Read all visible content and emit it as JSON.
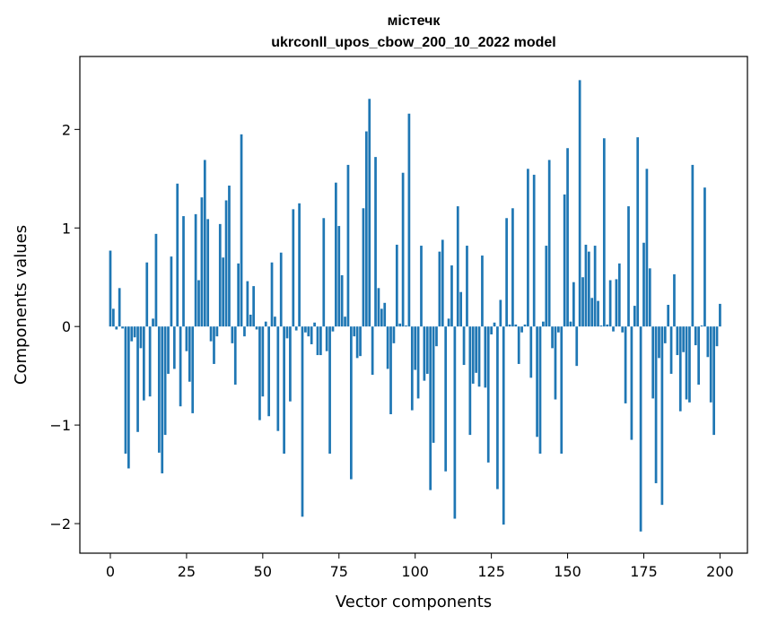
{
  "chart_data": {
    "type": "bar",
    "title_line1": "містечк",
    "title_line2": "ukrconll_upos_cbow_200_10_2022 model",
    "xlabel": "Vector components",
    "ylabel": "Components values",
    "xlim": [
      -10,
      209
    ],
    "ylim": [
      -2.3,
      2.74
    ],
    "xticks": [
      0,
      25,
      50,
      75,
      100,
      125,
      150,
      175,
      200
    ],
    "xtick_labels": [
      "0",
      "25",
      "50",
      "75",
      "100",
      "125",
      "150",
      "175",
      "200"
    ],
    "yticks": [
      -2,
      -1,
      0,
      1,
      2
    ],
    "ytick_labels": [
      "−2",
      "−1",
      "0",
      "1",
      "2"
    ],
    "grid": false,
    "bar_color": "#1f77b4",
    "values": [
      0.77,
      0.18,
      -0.03,
      0.39,
      -0.02,
      -1.29,
      -1.44,
      -0.15,
      -0.11,
      -1.07,
      -0.22,
      -0.75,
      0.65,
      -0.71,
      0.08,
      0.94,
      -1.28,
      -1.49,
      -1.1,
      -0.48,
      0.71,
      -0.43,
      1.45,
      -0.81,
      1.12,
      -0.25,
      -0.56,
      -0.88,
      1.14,
      0.47,
      1.31,
      1.69,
      1.09,
      -0.15,
      -0.38,
      -0.1,
      1.04,
      0.7,
      1.28,
      1.43,
      -0.17,
      -0.59,
      0.64,
      1.95,
      -0.1,
      0.46,
      0.12,
      0.41,
      -0.03,
      -0.95,
      -0.71,
      0.05,
      -0.91,
      0.65,
      0.1,
      -1.06,
      0.75,
      -1.29,
      -0.12,
      -0.76,
      1.19,
      -0.04,
      1.25,
      -1.93,
      -0.06,
      -0.1,
      -0.18,
      0.04,
      -0.29,
      -0.29,
      1.1,
      -0.25,
      -1.29,
      -0.05,
      1.46,
      1.02,
      0.52,
      0.1,
      1.64,
      -1.55,
      -0.1,
      -0.32,
      -0.3,
      1.2,
      1.98,
      2.31,
      -0.49,
      1.72,
      0.39,
      0.18,
      0.24,
      -0.43,
      -0.89,
      -0.17,
      0.83,
      0.03,
      1.56,
      0.01,
      2.16,
      -0.85,
      -0.44,
      -0.73,
      0.82,
      -0.55,
      -0.48,
      -1.66,
      -1.18,
      -0.2,
      0.76,
      0.88,
      -1.47,
      0.08,
      0.62,
      -1.95,
      1.22,
      0.35,
      -0.39,
      0.82,
      -1.1,
      -0.58,
      -0.47,
      -0.61,
      0.72,
      -0.62,
      -1.38,
      -0.08,
      0.04,
      -1.65,
      0.27,
      -2.01,
      1.1,
      0.02,
      1.2,
      0.02,
      -0.38,
      -0.06,
      0.02,
      1.6,
      -0.52,
      1.54,
      -1.12,
      -1.29,
      0.05,
      0.82,
      1.69,
      -0.22,
      -0.74,
      -0.06,
      -1.29,
      1.34,
      1.81,
      0.05,
      0.45,
      -0.4,
      2.5,
      0.5,
      0.83,
      0.76,
      0.29,
      0.82,
      0.26,
      0.01,
      1.91,
      0.02,
      0.47,
      -0.05,
      0.48,
      0.64,
      -0.06,
      -0.78,
      1.22,
      -1.15,
      0.21,
      1.92,
      -2.08,
      0.85,
      1.6,
      0.59,
      -0.73,
      -1.59,
      -0.32,
      -1.81,
      -0.17,
      0.22,
      -0.48,
      0.53,
      -0.29,
      -0.86,
      -0.26,
      -0.74,
      -0.77,
      1.64,
      -0.19,
      -0.59,
      0.01,
      1.41,
      -0.31,
      -0.77,
      -1.1,
      -0.2,
      0.23
    ]
  }
}
